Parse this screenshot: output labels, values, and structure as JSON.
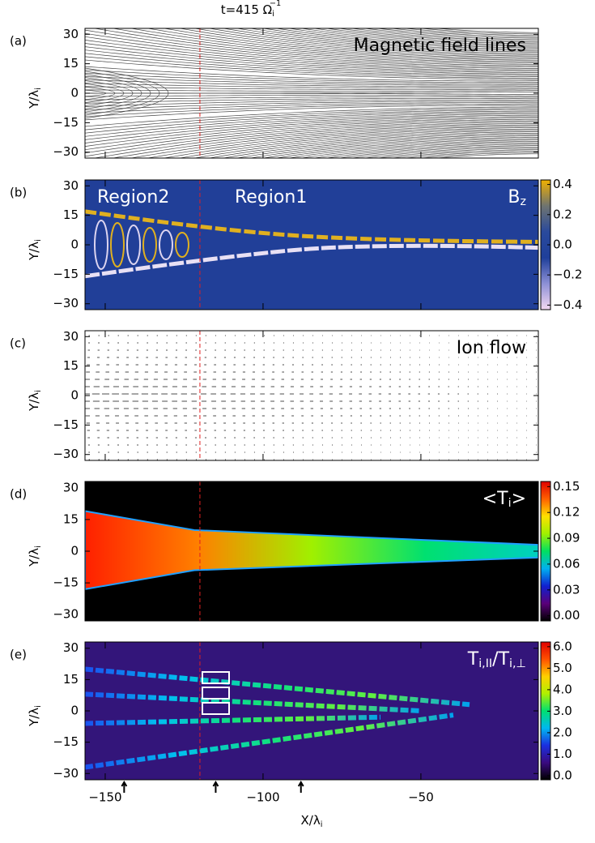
{
  "chart_data": [
    {
      "type": "field-lines",
      "panel": "(a)",
      "title": {
        "text": "t=415 Ω",
        "sub": "i",
        "sup": "−1"
      },
      "ylabel": {
        "text": "Y/λ",
        "sub": "i"
      },
      "annotations": [
        {
          "text": "Magnetic field lines"
        }
      ],
      "ylim": [
        -33,
        33
      ],
      "yticks": [
        30,
        15,
        0,
        {
          "value": -15,
          "label": "−15"
        },
        {
          "value": -30,
          "label": "−30"
        }
      ],
      "marker_x": -120
    },
    {
      "type": "heatmap",
      "panel": "(b)",
      "ylabel": {
        "text": "Y/λ",
        "sub": "i"
      },
      "annotations": [
        {
          "text": "Region2"
        },
        {
          "text": "Region1"
        },
        {
          "text": "B",
          "sub": "z"
        }
      ],
      "ylim": [
        -33,
        33
      ],
      "yticks": [
        30,
        15,
        0,
        {
          "value": -15,
          "label": "−15"
        },
        {
          "value": -30,
          "label": "−30"
        }
      ],
      "marker_x": -120,
      "colorbar": {
        "lim": [
          -0.43,
          0.43
        ],
        "ticks": [
          0.4,
          0.2,
          {
            "value": 0,
            "label": "0.0"
          },
          {
            "value": -0.2,
            "label": "−0.2"
          },
          {
            "value": -0.4,
            "label": "−0.4"
          }
        ],
        "colors": [
          "#f4d8f2",
          "#8d90d6",
          "#1f3f9a",
          "#2a4a9c",
          "#6f7470",
          "#f0b000"
        ]
      }
    },
    {
      "type": "quiver",
      "panel": "(c)",
      "ylabel": {
        "text": "Y/λ",
        "sub": "i"
      },
      "annotations": [
        {
          "text": "Ion flow"
        }
      ],
      "ylim": [
        -33,
        33
      ],
      "yticks": [
        30,
        15,
        0,
        {
          "value": -15,
          "label": "−15"
        },
        {
          "value": -30,
          "label": "−30"
        }
      ],
      "marker_x": -120
    },
    {
      "type": "heatmap",
      "panel": "(d)",
      "ylabel": {
        "text": "Y/λ",
        "sub": "i"
      },
      "annotations": [
        {
          "text": "<T",
          "sub": "i",
          "after": ">"
        }
      ],
      "ylim": [
        -33,
        33
      ],
      "yticks": [
        30,
        15,
        0,
        {
          "value": -15,
          "label": "−15"
        },
        {
          "value": -30,
          "label": "−30"
        }
      ],
      "marker_x": -120,
      "colorbar": {
        "lim": [
          -0.006,
          0.156
        ],
        "ticks": [
          0.15,
          0.12,
          0.09,
          0.06,
          0.03,
          {
            "value": 0,
            "label": "0.00"
          }
        ],
        "colors": [
          "#000000",
          "#5a007a",
          "#1020d0",
          "#00b0f0",
          "#00e060",
          "#a0f000",
          "#ffe000",
          "#ff6000",
          "#e00000"
        ]
      }
    },
    {
      "type": "heatmap",
      "panel": "(e)",
      "ylabel": {
        "text": "Y/λ",
        "sub": "i"
      },
      "annotations": [
        {
          "text": "T",
          "sub": "i,II",
          "after": "/T",
          "sub2": "i,⊥"
        }
      ],
      "ylim": [
        -33,
        33
      ],
      "yticks": [
        30,
        15,
        0,
        {
          "value": -15,
          "label": "−15"
        },
        {
          "value": -30,
          "label": "−30"
        }
      ],
      "marker_x": -120,
      "xlim": [
        -156.4,
        -12.8
      ],
      "xticks": [
        {
          "value": -150,
          "label": "−150"
        },
        {
          "value": -100,
          "label": "−100"
        },
        {
          "value": -50,
          "label": "−50"
        }
      ],
      "xlabel": {
        "text": "X/λ",
        "sub": "i"
      },
      "arrows_x": [
        -144,
        -115,
        -88
      ],
      "colorbar": {
        "lim": [
          -0.19,
          6.22
        ],
        "ticks": [
          {
            "value": 6,
            "label": "6.0"
          },
          {
            "value": 5,
            "label": "5.0"
          },
          {
            "value": 4,
            "label": "4.0"
          },
          {
            "value": 3,
            "label": "3.0"
          },
          {
            "value": 2,
            "label": "2.0"
          },
          {
            "value": 1,
            "label": "1.0"
          },
          {
            "value": 0,
            "label": "0.0"
          }
        ],
        "colors": [
          "#000000",
          "#3a0a80",
          "#1a30e0",
          "#00b8f0",
          "#00e070",
          "#b0f000",
          "#ffd000",
          "#ff5000",
          "#e00000"
        ]
      }
    }
  ]
}
